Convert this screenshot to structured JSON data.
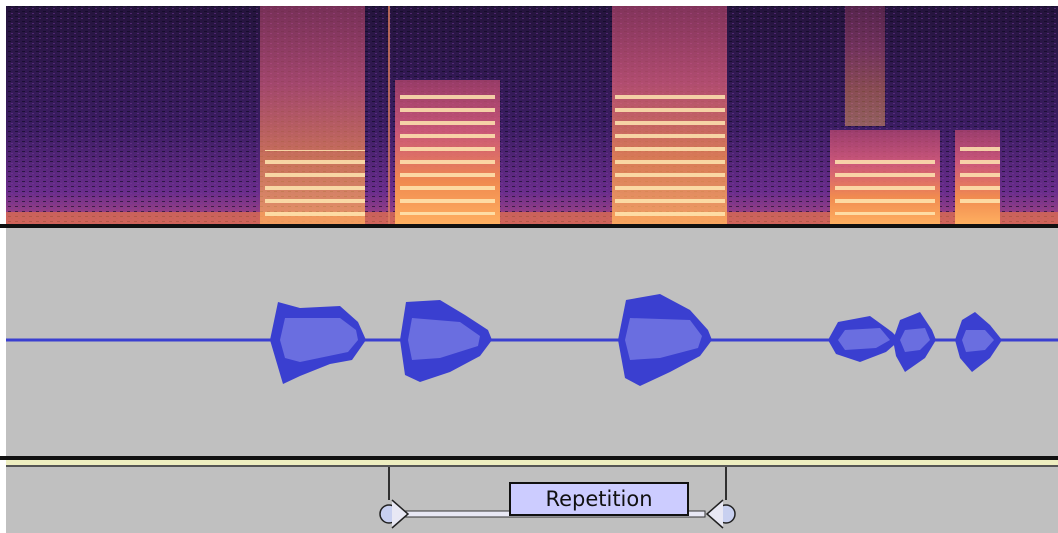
{
  "label_track": {
    "label": "Repetition"
  }
}
